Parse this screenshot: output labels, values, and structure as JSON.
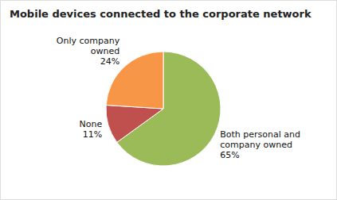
{
  "chart_data": {
    "type": "pie",
    "title": "Mobile devices connected to the corporate network",
    "categories": [
      "Both personal and\ncompany owned",
      "None",
      "Only company\nowned"
    ],
    "values": [
      65,
      11,
      24
    ],
    "value_labels": [
      "65%",
      "11%",
      "24%"
    ],
    "colors": [
      "#9BBB59",
      "#C0504D",
      "#F79646"
    ],
    "data_labels": true
  }
}
